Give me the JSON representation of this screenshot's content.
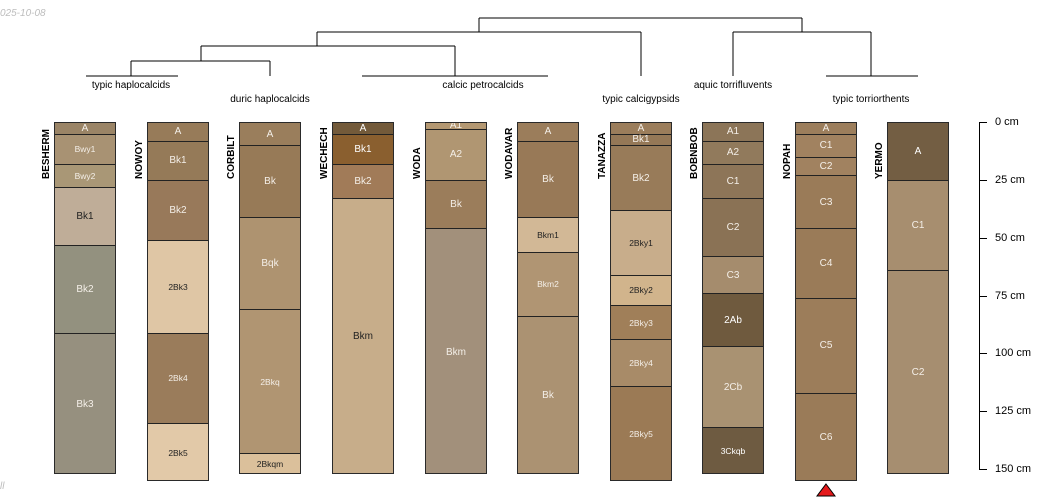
{
  "stamp": {
    "date": "025-10-08",
    "footer": "ll"
  },
  "groups": [
    {
      "label": "typic haplocalcids"
    },
    {
      "label": "duric haplocalcids"
    },
    {
      "label": "calcic petrocalcids"
    },
    {
      "label": "typic calcigypsids"
    },
    {
      "label": "aquic torrifluvents"
    },
    {
      "label": "typic torriorthents"
    }
  ],
  "profiles": [
    {
      "name": "BESHERM",
      "horizons": [
        {
          "name": "A",
          "top": 0,
          "bottom": 5,
          "color": "#9a8466"
        },
        {
          "name": "Bwy1",
          "top": 5,
          "bottom": 18,
          "color": "#a89273"
        },
        {
          "name": "Bwy2",
          "top": 18,
          "bottom": 28,
          "color": "#a99776"
        },
        {
          "name": "Bk1",
          "top": 28,
          "bottom": 53,
          "color": "#bfad98"
        },
        {
          "name": "Bk2",
          "top": 53,
          "bottom": 91,
          "color": "#93917f"
        },
        {
          "name": "Bk3",
          "top": 91,
          "bottom": 152,
          "color": "#96907f"
        }
      ]
    },
    {
      "name": "NOWOY",
      "horizons": [
        {
          "name": "A",
          "top": 0,
          "bottom": 8,
          "color": "#977b59"
        },
        {
          "name": "Bk1",
          "top": 8,
          "bottom": 25,
          "color": "#957a58"
        },
        {
          "name": "Bk2",
          "top": 25,
          "bottom": 51,
          "color": "#98795a"
        },
        {
          "name": "2Bk3",
          "top": 51,
          "bottom": 91,
          "color": "#dfc6a5"
        },
        {
          "name": "2Bk4",
          "top": 91,
          "bottom": 130,
          "color": "#9a7c5b"
        },
        {
          "name": "2Bk5",
          "top": 130,
          "bottom": 155,
          "color": "#e2c9a8"
        }
      ]
    },
    {
      "name": "CORBILT",
      "horizons": [
        {
          "name": "A",
          "top": 0,
          "bottom": 10,
          "color": "#9a7e5c"
        },
        {
          "name": "Bk",
          "top": 10,
          "bottom": 41,
          "color": "#977a57"
        },
        {
          "name": "Bqk",
          "top": 41,
          "bottom": 81,
          "color": "#ae9370"
        },
        {
          "name": "2Bkq",
          "top": 81,
          "bottom": 143,
          "color": "#b09572"
        },
        {
          "name": "2Bkqm",
          "top": 143,
          "bottom": 152,
          "color": "#dbc09b"
        }
      ]
    },
    {
      "name": "WECHECH",
      "horizons": [
        {
          "name": "A",
          "top": 0,
          "bottom": 5,
          "color": "#735a3a"
        },
        {
          "name": "Bk1",
          "top": 5,
          "bottom": 18,
          "color": "#8a5f2f"
        },
        {
          "name": "Bk2",
          "top": 18,
          "bottom": 33,
          "color": "#a17b58"
        },
        {
          "name": "Bkm",
          "top": 33,
          "bottom": 152,
          "color": "#c7ad8a"
        }
      ]
    },
    {
      "name": "WODA",
      "horizons": [
        {
          "name": "A1",
          "top": 0,
          "bottom": 3,
          "color": "#b49872"
        },
        {
          "name": "A2",
          "top": 3,
          "bottom": 25,
          "color": "#b09672"
        },
        {
          "name": "Bk",
          "top": 25,
          "bottom": 46,
          "color": "#9b7d5b"
        },
        {
          "name": "Bkm",
          "top": 46,
          "bottom": 152,
          "color": "#a2907b"
        }
      ]
    },
    {
      "name": "WODAVAR",
      "horizons": [
        {
          "name": "A",
          "top": 0,
          "bottom": 8,
          "color": "#9b7d5b"
        },
        {
          "name": "Bk",
          "top": 8,
          "bottom": 41,
          "color": "#987957"
        },
        {
          "name": "Bkm1",
          "top": 41,
          "bottom": 56,
          "color": "#d2b896"
        },
        {
          "name": "Bkm2",
          "top": 56,
          "bottom": 84,
          "color": "#b09573"
        },
        {
          "name": "Bk",
          "top": 84,
          "bottom": 152,
          "color": "#ab9272"
        }
      ]
    },
    {
      "name": "TANAZZA",
      "horizons": [
        {
          "name": "A",
          "top": 0,
          "bottom": 5,
          "color": "#9b7d5b"
        },
        {
          "name": "Bk1",
          "top": 5,
          "bottom": 10,
          "color": "#957857"
        },
        {
          "name": "Bk2",
          "top": 10,
          "bottom": 38,
          "color": "#987b59"
        },
        {
          "name": "2Bky1",
          "top": 38,
          "bottom": 66,
          "color": "#c8ad8b"
        },
        {
          "name": "2Bky2",
          "top": 66,
          "bottom": 79,
          "color": "#d1b48c"
        },
        {
          "name": "2Bky3",
          "top": 79,
          "bottom": 94,
          "color": "#a07f59"
        },
        {
          "name": "2Bky4",
          "top": 94,
          "bottom": 114,
          "color": "#a88b68"
        },
        {
          "name": "2Bky5",
          "top": 114,
          "bottom": 155,
          "color": "#9b7a55"
        }
      ]
    },
    {
      "name": "BOBNBOB",
      "horizons": [
        {
          "name": "A1",
          "top": 0,
          "bottom": 8,
          "color": "#8c7558"
        },
        {
          "name": "A2",
          "top": 8,
          "bottom": 18,
          "color": "#917a5c"
        },
        {
          "name": "C1",
          "top": 18,
          "bottom": 33,
          "color": "#8d7558"
        },
        {
          "name": "C2",
          "top": 33,
          "bottom": 58,
          "color": "#8a7255"
        },
        {
          "name": "C3",
          "top": 58,
          "bottom": 74,
          "color": "#a58c6d"
        },
        {
          "name": "2Ab",
          "top": 74,
          "bottom": 97,
          "color": "#6f5a3e"
        },
        {
          "name": "2Cb",
          "top": 97,
          "bottom": 132,
          "color": "#a99272"
        },
        {
          "name": "3Ckqb",
          "top": 132,
          "bottom": 152,
          "color": "#6e5b41"
        }
      ]
    },
    {
      "name": "NOPAH",
      "horizons": [
        {
          "name": "A",
          "top": 0,
          "bottom": 5,
          "color": "#9c7e5c"
        },
        {
          "name": "C1",
          "top": 5,
          "bottom": 15,
          "color": "#a18260"
        },
        {
          "name": "C2",
          "top": 15,
          "bottom": 23,
          "color": "#a18260"
        },
        {
          "name": "C3",
          "top": 23,
          "bottom": 46,
          "color": "#9a7b58"
        },
        {
          "name": "C4",
          "top": 46,
          "bottom": 76,
          "color": "#9a7b58"
        },
        {
          "name": "C5",
          "top": 76,
          "bottom": 117,
          "color": "#9c7d5a"
        },
        {
          "name": "C6",
          "top": 117,
          "bottom": 155,
          "color": "#9a7b58"
        }
      ]
    },
    {
      "name": "YERMO",
      "horizons": [
        {
          "name": "A",
          "top": 0,
          "bottom": 25,
          "color": "#735e43"
        },
        {
          "name": "C1",
          "top": 25,
          "bottom": 64,
          "color": "#a78e6f"
        },
        {
          "name": "C2",
          "top": 64,
          "bottom": 152,
          "color": "#a68e70"
        }
      ]
    }
  ],
  "depth_axis": {
    "unit": "cm",
    "ticks": [
      "0 cm",
      "25 cm",
      "50 cm",
      "75 cm",
      "100 cm",
      "125 cm",
      "150 cm"
    ],
    "values": [
      0,
      25,
      50,
      75,
      100,
      125,
      150
    ]
  },
  "marker": {
    "color": "#e41a1c",
    "profile": "NOPAH"
  }
}
